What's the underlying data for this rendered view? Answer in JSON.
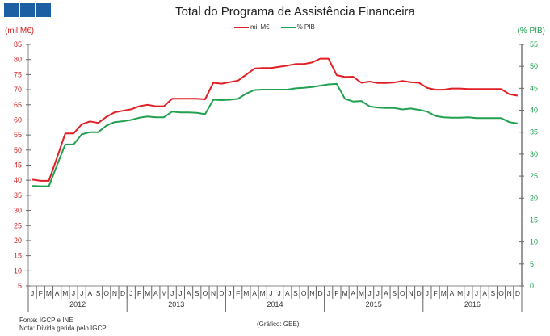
{
  "chart_data": {
    "type": "line",
    "title": "Total do Programa de Assistência Financeira",
    "ylabel_left": "(mil M€)",
    "ylabel_right": "(% PIB)",
    "ylim_left": [
      5,
      85
    ],
    "yticks_left": [
      5,
      10,
      15,
      20,
      25,
      30,
      35,
      40,
      45,
      50,
      55,
      60,
      65,
      70,
      75,
      80,
      85
    ],
    "ylim_right": [
      0,
      55
    ],
    "yticks_right": [
      0,
      5,
      10,
      15,
      20,
      25,
      30,
      35,
      40,
      45,
      50,
      55
    ],
    "months": [
      "J",
      "F",
      "M",
      "A",
      "M",
      "J",
      "J",
      "A",
      "S",
      "O",
      "N",
      "D"
    ],
    "years": [
      "2012",
      "2013",
      "2014",
      "2015",
      "2016"
    ],
    "legend_position": "top-center",
    "series": [
      {
        "name": "mil M€",
        "axis": "left",
        "color": "#e01e24",
        "values": [
          40.2,
          39.8,
          39.8,
          47.5,
          55.5,
          55.5,
          58.5,
          59.5,
          59,
          61,
          62.5,
          63,
          63.5,
          64.5,
          65,
          64.5,
          64.5,
          67,
          67,
          67,
          67,
          66.8,
          72.3,
          72,
          72.5,
          73,
          75,
          77,
          77.2,
          77.2,
          77.6,
          78,
          78.5,
          78.5,
          79,
          80.3,
          80.3,
          74.8,
          74.2,
          74.3,
          72.3,
          72.7,
          72.2,
          72.2,
          72.4,
          72.9,
          72.5,
          72.3,
          70.6,
          70,
          70,
          70.4,
          70.4,
          70.2,
          70.2,
          70.2,
          70.2,
          70.2,
          68.5,
          68
        ]
      },
      {
        "name": "% PIB",
        "axis": "right",
        "color": "#20a050",
        "values": [
          22.8,
          22.7,
          22.7,
          27.5,
          32.2,
          32.2,
          34.5,
          35,
          35,
          36.5,
          37.3,
          37.5,
          37.8,
          38.3,
          38.6,
          38.4,
          38.4,
          39.7,
          39.5,
          39.5,
          39.4,
          39.1,
          42.4,
          42.3,
          42.4,
          42.6,
          43.8,
          44.6,
          44.7,
          44.7,
          44.7,
          44.7,
          45,
          45.1,
          45.3,
          45.6,
          45.9,
          46,
          42.6,
          42,
          42.1,
          40.9,
          40.6,
          40.5,
          40.5,
          40.2,
          40.4,
          40.1,
          39.7,
          38.7,
          38.4,
          38.3,
          38.3,
          38.4,
          38.2,
          38.2,
          38.2,
          38.2,
          37.3,
          37
        ]
      }
    ]
  },
  "footer": {
    "source": "Fonte: IGCP e INE",
    "note": "Nota: Dívida gerida pelo IGCP",
    "credit": "(Gráfico: GEE)"
  }
}
